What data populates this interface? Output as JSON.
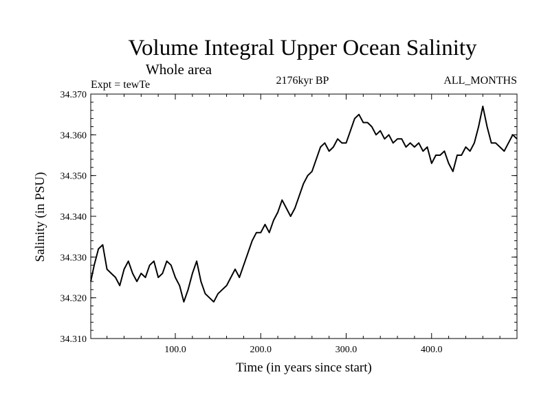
{
  "chart_data": {
    "type": "line",
    "title": "Volume Integral Upper Ocean Salinity",
    "subtitle": "Whole area",
    "experiment": "Expt = tewTe",
    "period": "2176kyr BP",
    "months": "ALL_MONTHS",
    "xlabel": "Time (in years since start)",
    "ylabel": "Salinity (in PSU)",
    "xlim": [
      1,
      500
    ],
    "ylim": [
      34.31,
      34.37
    ],
    "xticks": [
      {
        "value": 100,
        "label": "100.0"
      },
      {
        "value": 200,
        "label": "200.0"
      },
      {
        "value": 300,
        "label": "300.0"
      },
      {
        "value": 400,
        "label": "400.0"
      }
    ],
    "yticks": [
      {
        "value": 34.31,
        "label": "34.310"
      },
      {
        "value": 34.32,
        "label": "34.320"
      },
      {
        "value": 34.33,
        "label": "34.330"
      },
      {
        "value": 34.34,
        "label": "34.340"
      },
      {
        "value": 34.35,
        "label": "34.350"
      },
      {
        "value": 34.36,
        "label": "34.360"
      },
      {
        "value": 34.37,
        "label": "34.370"
      }
    ],
    "series": [
      {
        "name": "Salinity",
        "x": [
          1,
          5,
          10,
          15,
          20,
          25,
          30,
          35,
          40,
          45,
          50,
          55,
          60,
          65,
          70,
          75,
          80,
          85,
          90,
          95,
          100,
          105,
          110,
          115,
          120,
          125,
          130,
          135,
          140,
          145,
          150,
          155,
          160,
          165,
          170,
          175,
          180,
          185,
          190,
          195,
          200,
          205,
          210,
          215,
          220,
          225,
          230,
          235,
          240,
          245,
          250,
          255,
          260,
          265,
          270,
          275,
          280,
          285,
          290,
          295,
          300,
          305,
          310,
          315,
          320,
          325,
          330,
          335,
          340,
          345,
          350,
          355,
          360,
          365,
          370,
          375,
          380,
          385,
          390,
          395,
          400,
          405,
          410,
          415,
          420,
          425,
          430,
          435,
          440,
          445,
          450,
          455,
          460,
          465,
          470,
          475,
          480,
          485,
          490,
          495,
          500
        ],
        "values": [
          34.324,
          34.328,
          34.332,
          34.333,
          34.327,
          34.326,
          34.325,
          34.323,
          34.327,
          34.329,
          34.326,
          34.324,
          34.326,
          34.325,
          34.328,
          34.329,
          34.325,
          34.326,
          34.329,
          34.328,
          34.325,
          34.323,
          34.319,
          34.322,
          34.326,
          34.329,
          34.324,
          34.321,
          34.32,
          34.319,
          34.321,
          34.322,
          34.323,
          34.325,
          34.327,
          34.325,
          34.328,
          34.331,
          34.334,
          34.336,
          34.336,
          34.338,
          34.336,
          34.339,
          34.341,
          34.344,
          34.342,
          34.34,
          34.342,
          34.345,
          34.348,
          34.35,
          34.351,
          34.354,
          34.357,
          34.358,
          34.356,
          34.357,
          34.359,
          34.358,
          34.358,
          34.361,
          34.364,
          34.365,
          34.363,
          34.363,
          34.362,
          34.36,
          34.361,
          34.359,
          34.36,
          34.358,
          34.359,
          34.359,
          34.357,
          34.358,
          34.357,
          34.358,
          34.356,
          34.357,
          34.353,
          34.355,
          34.355,
          34.356,
          34.353,
          34.351,
          34.355,
          34.355,
          34.357,
          34.356,
          34.358,
          34.362,
          34.367,
          34.362,
          34.358,
          34.358,
          34.357,
          34.356,
          34.358,
          34.36,
          34.359
        ]
      }
    ]
  }
}
